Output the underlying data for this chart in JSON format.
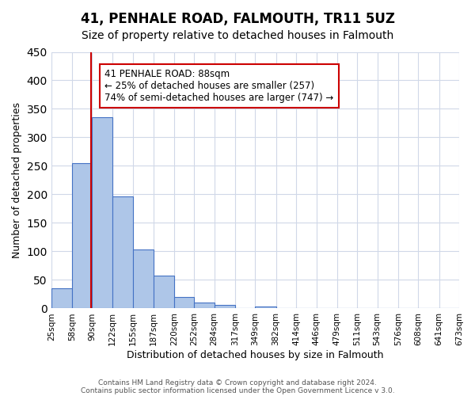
{
  "title": "41, PENHALE ROAD, FALMOUTH, TR11 5UZ",
  "subtitle": "Size of property relative to detached houses in Falmouth",
  "xlabel": "Distribution of detached houses by size in Falmouth",
  "ylabel": "Number of detached properties",
  "bar_heights": [
    35,
    255,
    335,
    197,
    104,
    57,
    20,
    10,
    6,
    1,
    3,
    1,
    0,
    0,
    0,
    0,
    0,
    0,
    0,
    1
  ],
  "bin_edges": [
    25,
    58,
    90,
    122,
    155,
    187,
    220,
    252,
    284,
    317,
    349,
    382,
    414,
    446,
    479,
    511,
    543,
    576,
    608,
    641,
    673
  ],
  "tick_labels": [
    "25sqm",
    "58sqm",
    "90sqm",
    "122sqm",
    "155sqm",
    "187sqm",
    "220sqm",
    "252sqm",
    "284sqm",
    "317sqm",
    "349sqm",
    "382sqm",
    "414sqm",
    "446sqm",
    "479sqm",
    "511sqm",
    "543sqm",
    "576sqm",
    "608sqm",
    "641sqm",
    "673sqm"
  ],
  "bar_color": "#aec6e8",
  "bar_edge_color": "#4472c4",
  "ylim": [
    0,
    450
  ],
  "yticks": [
    0,
    50,
    100,
    150,
    200,
    250,
    300,
    350,
    400,
    450
  ],
  "property_line_x": 88,
  "annotation_title": "41 PENHALE ROAD: 88sqm",
  "annotation_line1": "← 25% of detached houses are smaller (257)",
  "annotation_line2": "74% of semi-detached houses are larger (747) →",
  "annotation_box_color": "#ffffff",
  "annotation_box_edge": "#cc0000",
  "vline_color": "#cc0000",
  "footer1": "Contains HM Land Registry data © Crown copyright and database right 2024.",
  "footer2": "Contains public sector information licensed under the Open Government Licence v 3.0.",
  "background_color": "#ffffff",
  "grid_color": "#d0d8e8"
}
